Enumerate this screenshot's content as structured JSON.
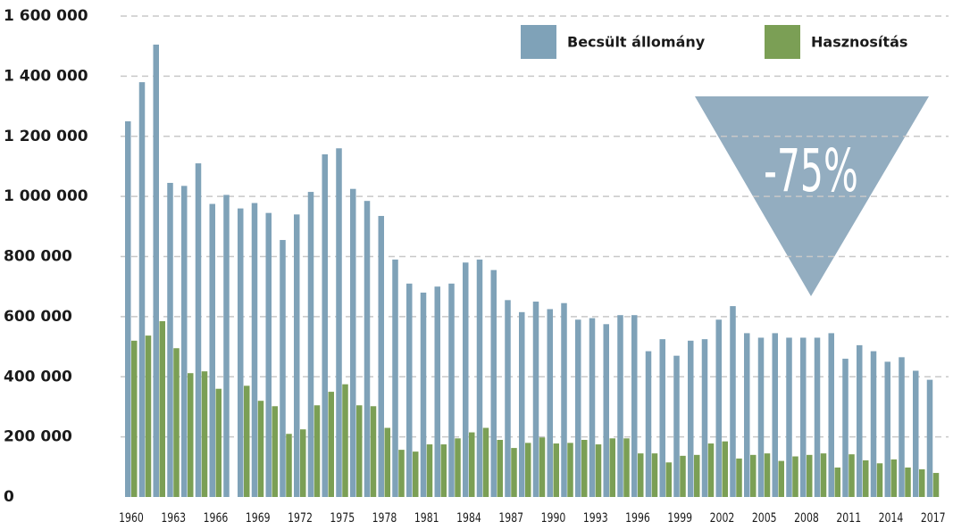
{
  "chart_data": {
    "type": "bar",
    "categories": [
      "1960",
      null,
      null,
      "1963",
      null,
      null,
      "1966",
      null,
      null,
      "1969",
      null,
      null,
      "1972",
      null,
      null,
      "1975",
      null,
      null,
      "1978",
      null,
      null,
      "1981",
      null,
      null,
      "1984",
      null,
      null,
      "1987",
      null,
      null,
      "1990",
      null,
      null,
      "1993",
      null,
      null,
      "1996",
      null,
      null,
      "1999",
      null,
      null,
      "2002",
      null,
      null,
      "2005",
      null,
      null,
      "2008",
      null,
      null,
      "2011",
      null,
      null,
      "2014",
      null,
      null,
      "2017"
    ],
    "series": [
      {
        "name": "Becsült állomány",
        "color": "#7fa2b8",
        "values": [
          1250000,
          1380000,
          1505000,
          1045000,
          1035000,
          1110000,
          975000,
          1005000,
          960000,
          978000,
          945000,
          855000,
          940000,
          1015000,
          1140000,
          1160000,
          1025000,
          985000,
          935000,
          790000,
          710000,
          680000,
          700000,
          710000,
          780000,
          790000,
          755000,
          655000,
          615000,
          650000,
          625000,
          645000,
          590000,
          595000,
          575000,
          605000,
          605000,
          485000,
          525000,
          470000,
          520000,
          525000,
          590000,
          635000,
          545000,
          530000,
          545000,
          530000,
          530000,
          530000,
          545000,
          460000,
          505000,
          485000,
          450000,
          465000,
          420000,
          390000
        ]
      },
      {
        "name": "Hasznosítás",
        "color": "#7b9f55",
        "values": [
          520000,
          537000,
          585000,
          495000,
          412000,
          418000,
          360000,
          null,
          370000,
          320000,
          302000,
          210000,
          225000,
          305000,
          350000,
          375000,
          305000,
          302000,
          230000,
          157000,
          151000,
          175000,
          175000,
          195000,
          215000,
          230000,
          190000,
          163000,
          180000,
          198000,
          178000,
          180000,
          190000,
          175000,
          195000,
          195000,
          145000,
          145000,
          115000,
          137000,
          140000,
          178000,
          185000,
          128000,
          140000,
          145000,
          120000,
          135000,
          140000,
          145000,
          98000,
          142000,
          122000,
          112000,
          125000,
          98000,
          92000,
          80000
        ]
      }
    ],
    "ylim": [
      0,
      1600000
    ],
    "yticks": [
      0,
      {
        "value": 200000,
        "label": "200 000"
      },
      {
        "value": 400000,
        "label": "400 000"
      },
      {
        "value": 600000,
        "label": "600 000"
      },
      {
        "value": 800000,
        "label": "800 000"
      },
      {
        "value": 1000000,
        "label": "1 000 000"
      },
      {
        "value": 1200000,
        "label": "1 200 000"
      },
      {
        "value": 1400000,
        "label": "1 400 000"
      },
      {
        "value": 1600000,
        "label": "1 600 000"
      }
    ],
    "grid": true,
    "legend": "top-right",
    "annotation": "-75%"
  }
}
